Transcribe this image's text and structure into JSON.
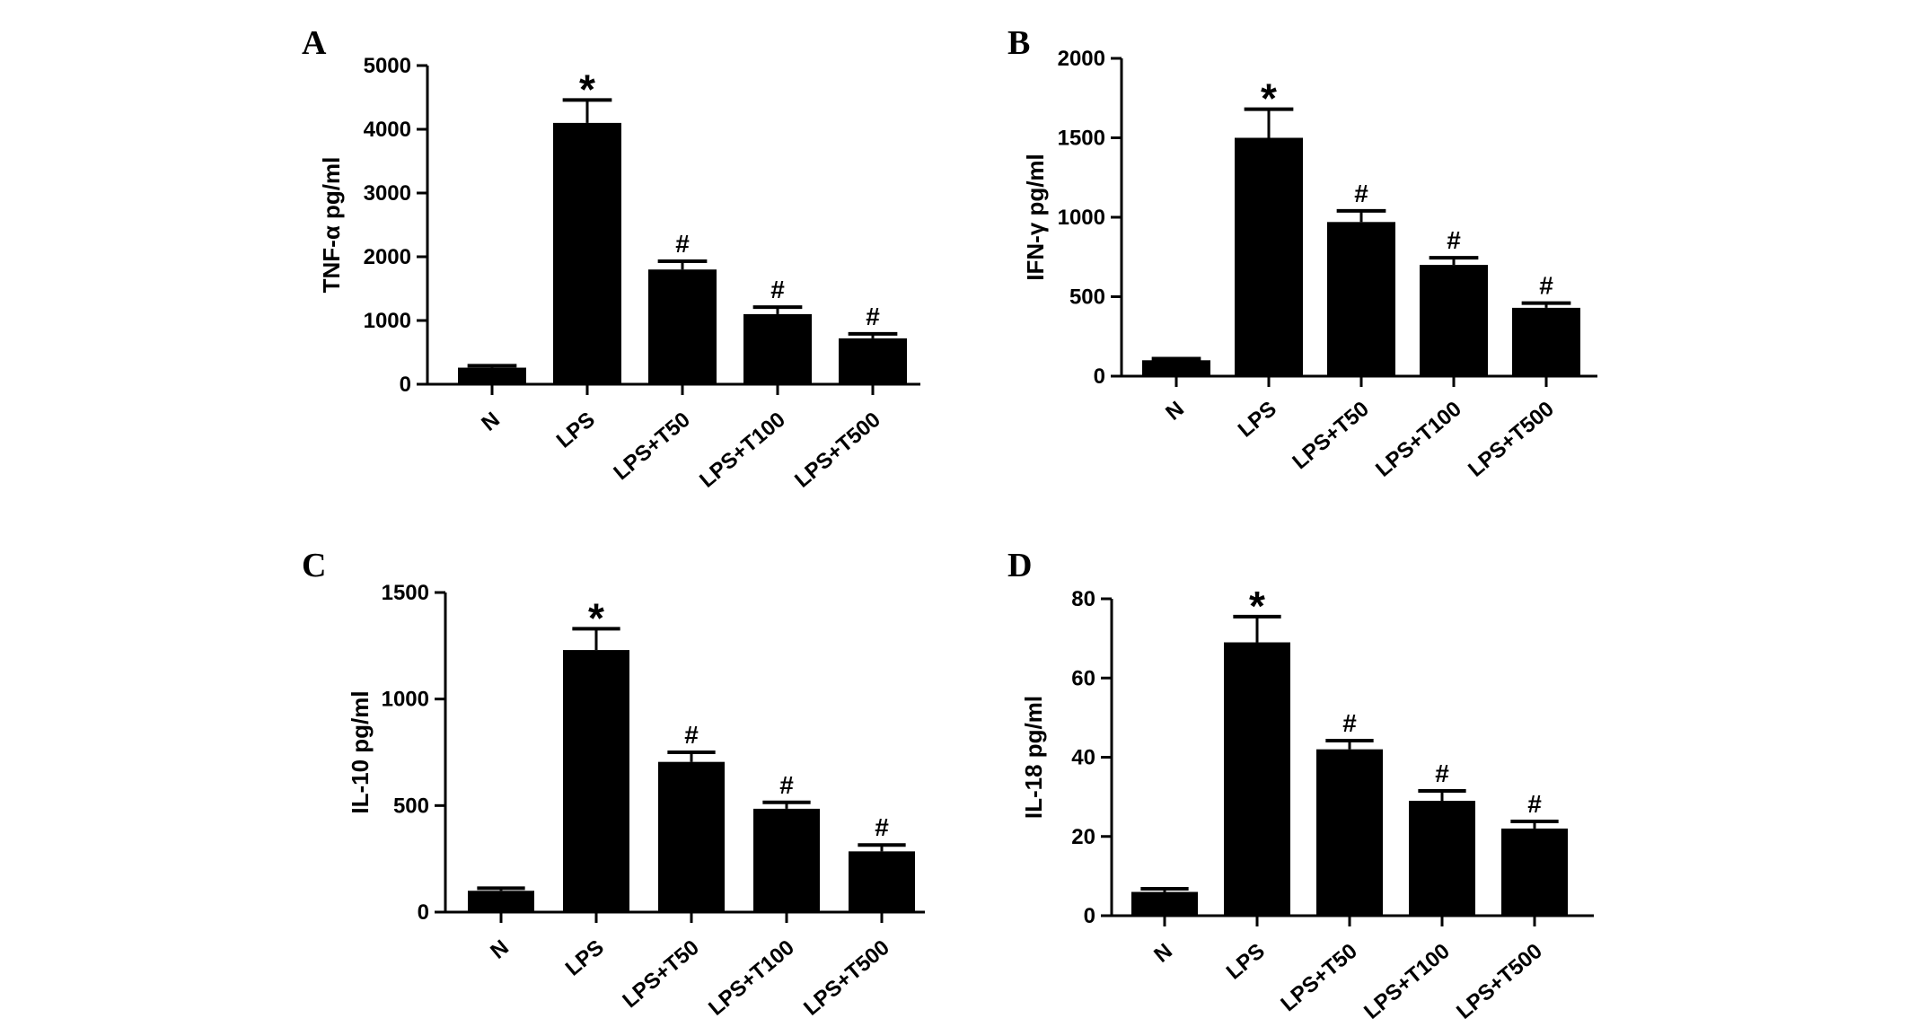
{
  "chart_data": [
    {
      "type": "bar",
      "panel": "A",
      "ylabel": "TNF-α pg/ml",
      "categories": [
        "N",
        "LPS",
        "LPS+T50",
        "LPS+T100",
        "LPS+T500"
      ],
      "values": [
        260,
        4100,
        1800,
        1100,
        720
      ],
      "errors": [
        30,
        360,
        130,
        110,
        70
      ],
      "annotations": [
        "",
        "*",
        "#",
        "#",
        "#"
      ],
      "ylim": [
        0,
        5000
      ],
      "yticks": [
        0,
        1000,
        2000,
        3000,
        4000,
        5000
      ]
    },
    {
      "type": "bar",
      "panel": "B",
      "ylabel": "IFN-γ pg/ml",
      "categories": [
        "N",
        "LPS",
        "LPS+T50",
        "LPS+T100",
        "LPS+T500"
      ],
      "values": [
        100,
        1500,
        970,
        700,
        430
      ],
      "errors": [
        10,
        180,
        70,
        45,
        30
      ],
      "annotations": [
        "",
        "*",
        "#",
        "#",
        "#"
      ],
      "ylim": [
        0,
        2000
      ],
      "yticks": [
        0,
        500,
        1000,
        1500,
        2000
      ]
    },
    {
      "type": "bar",
      "panel": "C",
      "ylabel": "IL-10 pg/ml",
      "categories": [
        "N",
        "LPS",
        "LPS+T50",
        "LPS+T100",
        "LPS+T500"
      ],
      "values": [
        100,
        1230,
        705,
        485,
        285
      ],
      "errors": [
        12,
        100,
        45,
        30,
        30
      ],
      "annotations": [
        "",
        "*",
        "#",
        "#",
        "#"
      ],
      "ylim": [
        0,
        1500
      ],
      "yticks": [
        0,
        500,
        1000,
        1500
      ]
    },
    {
      "type": "bar",
      "panel": "D",
      "ylabel": "IL-18 pg/ml",
      "categories": [
        "N",
        "LPS",
        "LPS+T50",
        "LPS+T100",
        "LPS+T500"
      ],
      "values": [
        6,
        69,
        42,
        29,
        22
      ],
      "errors": [
        0.8,
        6.5,
        2.2,
        2.5,
        1.8
      ],
      "annotations": [
        "",
        "*",
        "#",
        "#",
        "#"
      ],
      "ylim": [
        0,
        80
      ],
      "yticks": [
        0,
        20,
        40,
        60,
        80
      ]
    }
  ],
  "colors": {
    "bar": "#000000",
    "axis": "#000000",
    "background": "#ffffff"
  }
}
